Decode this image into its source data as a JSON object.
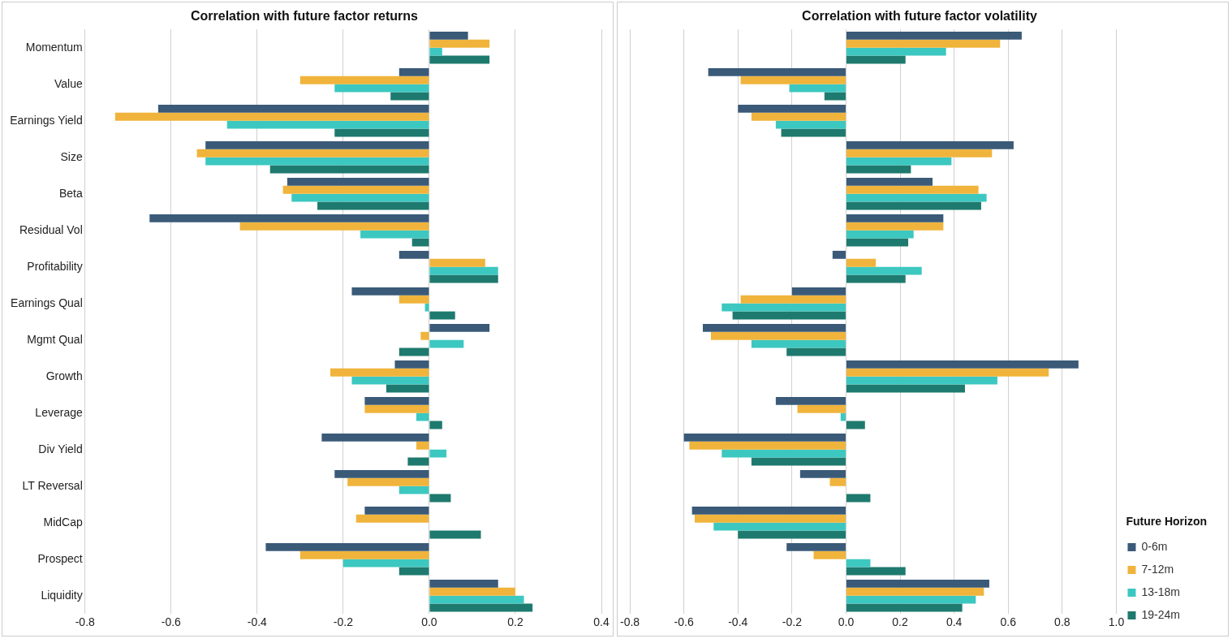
{
  "chart_data": [
    {
      "type": "bar",
      "orientation": "horizontal",
      "title": "Correlation with future factor returns",
      "categories": [
        "Momentum",
        "Value",
        "Earnings Yield",
        "Size",
        "Beta",
        "Residual Vol",
        "Profitability",
        "Earnings Qual",
        "Mgmt Qual",
        "Growth",
        "Leverage",
        "Div Yield",
        "LT Reversal",
        "MidCap",
        "Prospect",
        "Liquidity"
      ],
      "series": [
        {
          "color": "#3a5a78",
          "values": [
            0.09,
            -0.07,
            -0.63,
            -0.52,
            -0.33,
            -0.65,
            -0.07,
            -0.18,
            0.14,
            -0.08,
            -0.15,
            -0.25,
            -0.22,
            -0.15,
            -0.38,
            0.16
          ]
        },
        {
          "color": "#f0b43c",
          "values": [
            0.14,
            -0.3,
            -0.73,
            -0.54,
            -0.34,
            -0.44,
            0.13,
            -0.07,
            -0.02,
            -0.23,
            -0.15,
            -0.03,
            -0.19,
            -0.17,
            -0.3,
            0.2
          ]
        },
        {
          "color": "#3cc8c0",
          "values": [
            0.03,
            -0.22,
            -0.47,
            -0.52,
            -0.32,
            -0.16,
            0.16,
            -0.01,
            0.08,
            -0.18,
            -0.03,
            0.04,
            -0.07,
            0.0,
            -0.2,
            0.22
          ]
        },
        {
          "color": "#1e7a6e",
          "values": [
            0.14,
            -0.09,
            -0.22,
            -0.37,
            -0.26,
            -0.04,
            0.16,
            0.06,
            -0.07,
            -0.1,
            0.03,
            -0.05,
            0.05,
            0.12,
            -0.07,
            0.24
          ]
        }
      ],
      "xlim": [
        -0.8,
        0.4
      ],
      "xticks": [
        {
          "value": -0.8,
          "label": "-0.8"
        },
        {
          "value": -0.6,
          "label": "-0.6"
        },
        {
          "value": -0.4,
          "label": "-0.4"
        },
        {
          "value": -0.2,
          "label": "-0.2"
        },
        {
          "value": 0,
          "label": "0.0"
        },
        {
          "value": 0.2,
          "label": "0.2"
        },
        {
          "value": 0.4,
          "label": "0.4"
        }
      ],
      "grid": "x",
      "legend": false
    },
    {
      "type": "bar",
      "orientation": "horizontal",
      "title": "Correlation with future factor volatility",
      "categories": [
        null,
        null,
        null,
        null,
        null,
        null,
        null,
        null,
        null,
        null,
        null,
        null,
        null,
        null,
        null,
        null
      ],
      "legend_title": "Future Horizon",
      "series": [
        {
          "name": "0-6m",
          "color": "#3a5a78",
          "values": [
            0.65,
            -0.51,
            -0.4,
            0.62,
            0.32,
            0.36,
            -0.05,
            -0.2,
            -0.53,
            0.86,
            -0.26,
            -0.6,
            -0.17,
            -0.57,
            -0.22,
            0.53
          ]
        },
        {
          "name": "7-12m",
          "color": "#f0b43c",
          "values": [
            0.57,
            -0.39,
            -0.35,
            0.54,
            0.49,
            0.36,
            0.11,
            -0.39,
            -0.5,
            0.75,
            -0.18,
            -0.58,
            -0.06,
            -0.56,
            -0.12,
            0.51
          ]
        },
        {
          "name": "13-18m",
          "color": "#3cc8c0",
          "values": [
            0.37,
            -0.21,
            -0.26,
            0.39,
            0.52,
            0.25,
            0.28,
            -0.46,
            -0.35,
            0.56,
            -0.02,
            -0.46,
            0.0,
            -0.49,
            0.09,
            0.48
          ]
        },
        {
          "name": "19-24m",
          "color": "#1e7a6e",
          "values": [
            0.22,
            -0.08,
            -0.24,
            0.24,
            0.5,
            0.23,
            0.22,
            -0.42,
            -0.22,
            0.44,
            0.07,
            -0.35,
            0.09,
            -0.4,
            0.22,
            0.43
          ]
        }
      ],
      "xlim": [
        -0.8,
        1.0
      ],
      "xticks": [
        {
          "value": -0.8,
          "label": "-0.8"
        },
        {
          "value": -0.6,
          "label": "-0.6"
        },
        {
          "value": -0.4,
          "label": "-0.4"
        },
        {
          "value": -0.2,
          "label": "-0.2"
        },
        {
          "value": 0,
          "label": "0.0"
        },
        {
          "value": 0.2,
          "label": "0.2"
        },
        {
          "value": 0.4,
          "label": "0.4"
        },
        {
          "value": 0.6,
          "label": "0.6"
        },
        {
          "value": 0.8,
          "label": "0.8"
        },
        {
          "value": 1.0,
          "label": "1.0"
        }
      ],
      "tick_labels": "x",
      "grid": "x",
      "legend": "right"
    }
  ]
}
